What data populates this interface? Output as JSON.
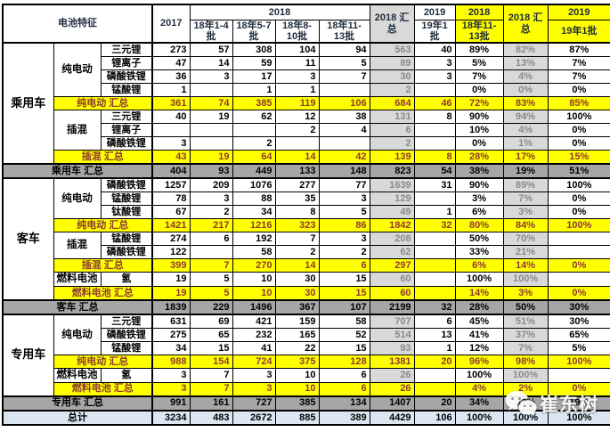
{
  "header": {
    "feature": "电池特征",
    "y2017": "2017",
    "y2018": "2018",
    "batches": [
      "18年1-4批",
      "18年5-7批",
      "18年8-10批",
      "18年11-13批"
    ],
    "total2018": "2018 汇总",
    "y2019": "2019",
    "batch2019": "19年1批",
    "hl2018": "2018",
    "hl2018_batch": "18年11-13批",
    "hl2018_total": "2018 汇总",
    "hl2019": "2019",
    "hl2019_batch": "19年1批"
  },
  "colors": {
    "highlight_yellow": "#ffff00",
    "column_gray": "#d9d9d9",
    "section_row_gray": "#a6a6a6",
    "grand_total_blue": "#dbe6f2",
    "subtotal_text_red": "#8d3a32"
  },
  "watermark": {
    "icon": "wechat-icon",
    "text": "崔东树"
  },
  "sections": [
    {
      "vehicle": "乘用车",
      "rows": [
        {
          "kind": "data",
          "cat": "纯电动",
          "cat_span": 4,
          "battery": "三元锂",
          "values": [
            "273",
            "57",
            "308",
            "104",
            "94",
            "563",
            "40",
            "89%",
            "82%",
            "87%"
          ]
        },
        {
          "kind": "data",
          "battery": "锂离子",
          "values": [
            "47",
            "14",
            "59",
            "11",
            "5",
            "89",
            "3",
            "5%",
            "13%",
            "7%"
          ]
        },
        {
          "kind": "data",
          "battery": "磷酸铁锂",
          "values": [
            "36",
            "3",
            "17",
            "3",
            "7",
            "30",
            "3",
            "7%",
            "4%",
            "7%"
          ]
        },
        {
          "kind": "data",
          "battery": "锰酸锂",
          "values": [
            "1",
            "",
            "1",
            "1",
            "",
            "2",
            "",
            "0%",
            "0%",
            "0%"
          ]
        },
        {
          "kind": "sub",
          "label": "纯电动 汇总",
          "values": [
            "361",
            "74",
            "385",
            "119",
            "106",
            "684",
            "46",
            "72%",
            "83%",
            "85%"
          ]
        },
        {
          "kind": "data",
          "cat": "插混",
          "cat_span": 3,
          "battery": "三元锂",
          "values": [
            "40",
            "19",
            "62",
            "12",
            "38",
            "131",
            "8",
            "90%",
            "94%",
            "100%"
          ]
        },
        {
          "kind": "data",
          "battery": "锂离子",
          "values": [
            "",
            "",
            "",
            "2",
            "4",
            "6",
            "",
            "10%",
            "4%",
            "0%"
          ]
        },
        {
          "kind": "data",
          "battery": "磷酸铁锂",
          "values": [
            "3",
            "",
            "2",
            "",
            "",
            "2",
            "",
            "0%",
            "1%",
            "0%"
          ]
        },
        {
          "kind": "sub",
          "label": "插混 汇总",
          "values": [
            "43",
            "19",
            "64",
            "14",
            "42",
            "139",
            "8",
            "28%",
            "17%",
            "15%"
          ]
        }
      ],
      "total": {
        "label": "乘用车 汇总",
        "values": [
          "404",
          "93",
          "449",
          "133",
          "148",
          "823",
          "54",
          "38%",
          "19%",
          "51%"
        ]
      }
    },
    {
      "vehicle": "客车",
      "rows": [
        {
          "kind": "data",
          "cat": "纯电动",
          "cat_span": 3,
          "battery": "磷酸铁锂",
          "values": [
            "1257",
            "209",
            "1076",
            "277",
            "77",
            "1639",
            "31",
            "90%",
            "89%",
            "100%"
          ]
        },
        {
          "kind": "data",
          "battery": "锰酸锂",
          "values": [
            "78",
            "3",
            "88",
            "35",
            "3",
            "129",
            "",
            "3%",
            "7%",
            "0%"
          ]
        },
        {
          "kind": "data",
          "battery": "钛酸锂",
          "values": [
            "67",
            "2",
            "34",
            "8",
            "5",
            "49",
            "1",
            "6%",
            "3%",
            "0%"
          ]
        },
        {
          "kind": "sub",
          "label": "纯电动 汇总",
          "values": [
            "1421",
            "217",
            "1216",
            "323",
            "86",
            "1842",
            "32",
            "80%",
            "84%",
            "100%"
          ]
        },
        {
          "kind": "data",
          "cat": "插混",
          "cat_span": 2,
          "battery": "锰酸锂",
          "values": [
            "274",
            "6",
            "192",
            "7",
            "3",
            "208",
            "",
            "50%",
            "70%",
            ""
          ]
        },
        {
          "kind": "data",
          "battery": "磷酸铁锂",
          "values": [
            "122",
            "",
            "58",
            "2",
            "2",
            "62",
            "",
            "33%",
            "21%",
            ""
          ]
        },
        {
          "kind": "sub",
          "label": "插混 汇总",
          "values": [
            "399",
            "7",
            "270",
            "14",
            "6",
            "297",
            "",
            "6%",
            "14%",
            "0%"
          ]
        },
        {
          "kind": "data",
          "cat": "燃料电池",
          "cat_span": 1,
          "battery": "氢",
          "values": [
            "19",
            "5",
            "10",
            "30",
            "15",
            "60",
            "",
            "100%",
            "100%",
            ""
          ]
        },
        {
          "kind": "sub",
          "label": "燃料电池 汇总",
          "values": [
            "19",
            "5",
            "10",
            "30",
            "15",
            "60",
            "",
            "14%",
            "3%",
            "0%"
          ]
        }
      ],
      "total": {
        "label": "客车 汇总",
        "values": [
          "1839",
          "229",
          "1496",
          "367",
          "107",
          "2199",
          "32",
          "28%",
          "50%",
          "30%"
        ]
      }
    },
    {
      "vehicle": "专用车",
      "rows": [
        {
          "kind": "data",
          "cat": "纯电动",
          "cat_span": 3,
          "battery": "三元锂",
          "values": [
            "631",
            "69",
            "421",
            "159",
            "58",
            "707",
            "6",
            "45%",
            "51%",
            "30%"
          ]
        },
        {
          "kind": "data",
          "battery": "磷酸铁锂",
          "values": [
            "275",
            "65",
            "232",
            "165",
            "52",
            "514",
            "13",
            "41%",
            "37%",
            "65%"
          ]
        },
        {
          "kind": "data",
          "battery": "锰酸锂",
          "values": [
            "34",
            "15",
            "41",
            "22",
            "15",
            "93",
            "1",
            "12%",
            "7%",
            "5%"
          ]
        },
        {
          "kind": "sub",
          "label": "纯电动 汇总",
          "values": [
            "988",
            "154",
            "724",
            "375",
            "128",
            "1381",
            "20",
            "96%",
            "98%",
            "100%"
          ]
        },
        {
          "kind": "data",
          "cat": "燃料电池",
          "cat_span": 1,
          "battery": "氢",
          "values": [
            "3",
            "7",
            "3",
            "10",
            "6",
            "26",
            "",
            "100%",
            "100%",
            ""
          ]
        },
        {
          "kind": "sub",
          "label": "燃料电池 汇总",
          "values": [
            "3",
            "7",
            "3",
            "10",
            "6",
            "26",
            "",
            "4%",
            "2%",
            "0%"
          ]
        }
      ],
      "total": {
        "label": "专用车 汇总",
        "values": [
          "991",
          "161",
          "727",
          "385",
          "134",
          "1407",
          "20",
          "34%",
          "32%",
          "19%"
        ]
      }
    }
  ],
  "grand_total": {
    "label": "总计",
    "values": [
      "3234",
      "483",
      "2672",
      "885",
      "389",
      "4429",
      "106",
      "100%",
      "100%",
      "100%"
    ]
  }
}
